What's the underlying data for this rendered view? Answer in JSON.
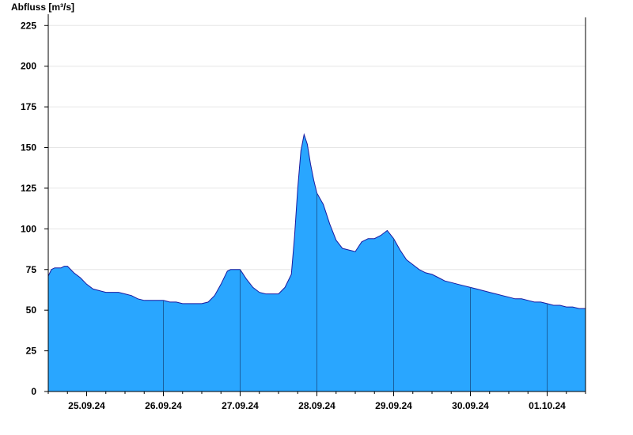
{
  "chart_data": {
    "type": "area",
    "ylabel": "Abfluss [m³/s]",
    "xlabel": "",
    "title": "",
    "ylim": [
      0,
      230
    ],
    "yticks": [
      0,
      25,
      50,
      75,
      100,
      125,
      150,
      175,
      200,
      225
    ],
    "x_range_days": [
      "24.09.24 12:00",
      "01.10.24 12:00"
    ],
    "day_labels": [
      "25.09.24",
      "26.09.24",
      "27.09.24",
      "28.09.24",
      "29.09.24",
      "30.09.24",
      "01.10.24"
    ],
    "grid": "horizontal",
    "fill_color": "#29a6ff",
    "line_color": "#1a1aa0",
    "series": [
      {
        "x_hours": [
          0,
          1,
          2,
          3,
          4,
          5,
          6,
          8,
          10,
          12,
          14,
          16,
          18,
          20,
          22,
          24,
          26,
          28,
          30,
          32,
          34,
          36,
          38,
          40,
          42,
          44,
          46,
          48,
          50,
          52,
          54,
          56,
          57,
          58,
          60,
          62,
          64,
          66,
          68,
          70,
          72,
          74,
          76,
          77,
          78,
          79,
          80,
          81,
          82,
          83,
          84,
          86,
          88,
          90,
          92,
          94,
          96,
          98,
          100,
          102,
          104,
          106,
          108,
          110,
          112,
          114,
          116,
          118,
          120,
          122,
          124,
          126,
          128,
          130,
          132,
          134,
          136,
          138,
          140,
          142,
          144,
          146,
          148,
          150,
          152,
          154,
          156,
          158,
          160,
          162,
          164,
          166,
          168
        ],
        "values": [
          71,
          75,
          76,
          76,
          76,
          77,
          77,
          73,
          70,
          66,
          63,
          62,
          61,
          61,
          61,
          60,
          59,
          57,
          56,
          56,
          56,
          56,
          55,
          55,
          54,
          54,
          54,
          54,
          55,
          59,
          66,
          74,
          75,
          75,
          75,
          69,
          64,
          61,
          60,
          60,
          60,
          64,
          72,
          95,
          125,
          148,
          158,
          152,
          140,
          130,
          122,
          115,
          103,
          93,
          88,
          87,
          86,
          92,
          94,
          94,
          96,
          99,
          94,
          87,
          81,
          78,
          75,
          73,
          72,
          70,
          68,
          67,
          66,
          65,
          64,
          63,
          62,
          61,
          60,
          59,
          58,
          57,
          57,
          56,
          55,
          55,
          54,
          53,
          53,
          52,
          52,
          51,
          51
        ]
      }
    ]
  }
}
